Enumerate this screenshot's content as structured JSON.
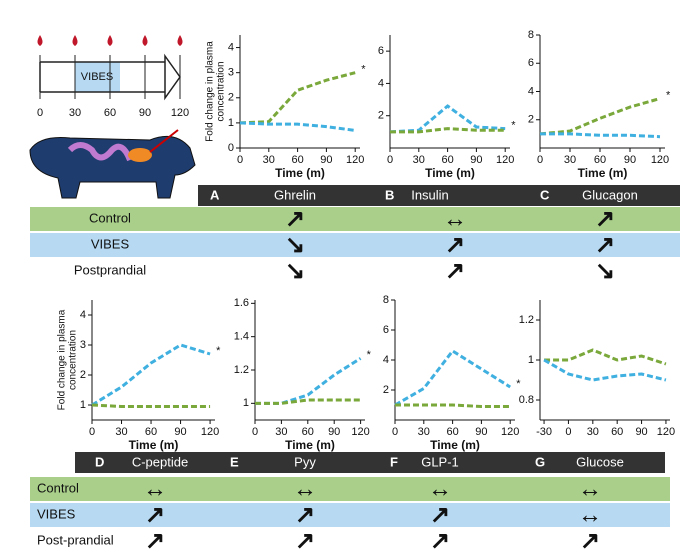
{
  "timeline": {
    "label": "VIBES",
    "ticks": [
      "0",
      "30",
      "60",
      "90",
      "120"
    ]
  },
  "chart_data": [
    {
      "type": "line",
      "x": [
        0,
        30,
        60,
        90,
        120
      ],
      "xlim": [
        0,
        125
      ],
      "xticks": [
        0,
        30,
        60,
        90,
        120
      ],
      "ylim": [
        0,
        4.5
      ],
      "yticks": [
        0,
        1,
        2,
        3,
        4
      ],
      "xlabel": "Time (m)",
      "ylabel": [
        "Fold change in plasma",
        "concentration"
      ],
      "series": [
        {
          "color": "#7aa83a",
          "values": [
            1,
            1.05,
            2.3,
            2.7,
            3.0
          ],
          "annotation": "*"
        },
        {
          "color": "#3fb0e0",
          "values": [
            1,
            0.95,
            0.95,
            0.85,
            0.7
          ]
        }
      ]
    },
    {
      "type": "line",
      "x": [
        0,
        30,
        60,
        90,
        120
      ],
      "xlim": [
        0,
        125
      ],
      "xticks": [
        0,
        30,
        60,
        90,
        120
      ],
      "ylim": [
        0,
        7
      ],
      "yticks": [
        2,
        4,
        6
      ],
      "xlabel": "Time (m)",
      "series": [
        {
          "color": "#3fb0e0",
          "values": [
            1,
            1.1,
            2.6,
            1.3,
            1.2
          ],
          "annotation": "*"
        },
        {
          "color": "#7aa83a",
          "values": [
            1,
            1,
            1.2,
            1.1,
            1.1
          ]
        }
      ]
    },
    {
      "type": "line",
      "x": [
        0,
        30,
        60,
        90,
        120
      ],
      "xlim": [
        0,
        125
      ],
      "xticks": [
        0,
        30,
        60,
        90,
        120
      ],
      "ylim": [
        0,
        8
      ],
      "yticks": [
        2,
        4,
        6,
        8
      ],
      "xlabel": "Time (m)",
      "series": [
        {
          "color": "#7aa83a",
          "values": [
            1,
            1.2,
            2.1,
            2.9,
            3.5
          ],
          "annotation": "*"
        },
        {
          "color": "#3fb0e0",
          "values": [
            1,
            1,
            0.9,
            0.9,
            0.8
          ]
        }
      ]
    },
    {
      "type": "line",
      "x": [
        0,
        30,
        60,
        90,
        120
      ],
      "xlim": [
        0,
        125
      ],
      "xticks": [
        0,
        30,
        60,
        90,
        120
      ],
      "ylim": [
        0.5,
        4.5
      ],
      "yticks": [
        1,
        2,
        3,
        4
      ],
      "xlabel": "Time (m)",
      "ylabel": [
        "Fold change in plasma",
        "concentration"
      ],
      "series": [
        {
          "color": "#3fb0e0",
          "values": [
            1,
            1.6,
            2.4,
            3.0,
            2.7
          ],
          "annotation": "*"
        },
        {
          "color": "#7aa83a",
          "values": [
            1,
            0.95,
            0.95,
            0.95,
            0.95
          ]
        }
      ]
    },
    {
      "type": "line",
      "x": [
        0,
        30,
        60,
        90,
        120
      ],
      "xlim": [
        0,
        125
      ],
      "xticks": [
        0,
        30,
        60,
        90,
        120
      ],
      "ylim": [
        0.9,
        1.62
      ],
      "yticks": [
        1,
        1.2,
        1.4,
        1.6
      ],
      "xlabel": "Time (m)",
      "series": [
        {
          "color": "#3fb0e0",
          "values": [
            1,
            1.0,
            1.05,
            1.17,
            1.27
          ],
          "annotation": "*"
        },
        {
          "color": "#7aa83a",
          "values": [
            1,
            1,
            1.02,
            1.02,
            1.02
          ]
        }
      ]
    },
    {
      "type": "line",
      "x": [
        0,
        30,
        60,
        90,
        120
      ],
      "xlim": [
        0,
        125
      ],
      "xticks": [
        0,
        30,
        60,
        90,
        120
      ],
      "ylim": [
        0,
        8
      ],
      "yticks": [
        2,
        4,
        6,
        8
      ],
      "xlabel": "Time (m)",
      "series": [
        {
          "color": "#3fb0e0",
          "values": [
            1,
            2.1,
            4.6,
            3.4,
            2.2
          ],
          "annotation": "*"
        },
        {
          "color": "#7aa83a",
          "values": [
            1,
            1,
            1,
            0.9,
            0.9
          ]
        }
      ]
    },
    {
      "type": "line",
      "x": [
        -30,
        0,
        30,
        60,
        90,
        120
      ],
      "xlim": [
        -35,
        125
      ],
      "xticks": [
        -30,
        0,
        30,
        60,
        90,
        120
      ],
      "ylim": [
        0.7,
        1.3
      ],
      "yticks": [
        0.8,
        1,
        1.2
      ],
      "series": [
        {
          "color": "#7aa83a",
          "values": [
            1,
            1,
            1.05,
            1.0,
            1.02,
            0.98
          ]
        },
        {
          "color": "#3fb0e0",
          "values": [
            1,
            0.93,
            0.9,
            0.92,
            0.93,
            0.9
          ]
        }
      ]
    }
  ],
  "tables": [
    {
      "columns": [
        {
          "letter": "A",
          "name": "Ghrelin"
        },
        {
          "letter": "B",
          "name": "Insulin"
        },
        {
          "letter": "C",
          "name": "Glucagon"
        }
      ],
      "rows": [
        {
          "label": "Control",
          "cells": [
            "↗",
            "↔",
            "↗"
          ]
        },
        {
          "label": "VIBES",
          "cells": [
            "↘",
            "↗",
            "↗"
          ]
        },
        {
          "label": "Postprandial",
          "cells": [
            "↘",
            "↗",
            "↘"
          ]
        }
      ]
    },
    {
      "columns": [
        {
          "letter": "D",
          "name": "C-peptide"
        },
        {
          "letter": "E",
          "name": "Pyy"
        },
        {
          "letter": "F",
          "name": "GLP-1"
        },
        {
          "letter": "G",
          "name": "Glucose"
        }
      ],
      "rows": [
        {
          "label": "Control",
          "cells": [
            "↔",
            "↔",
            "↔",
            "↔"
          ]
        },
        {
          "label": "VIBES",
          "cells": [
            "↗",
            "↗",
            "↗",
            "↔"
          ]
        },
        {
          "label": "Post-prandial",
          "cells": [
            "↗",
            "↗",
            "↗",
            "↗"
          ]
        }
      ]
    }
  ]
}
